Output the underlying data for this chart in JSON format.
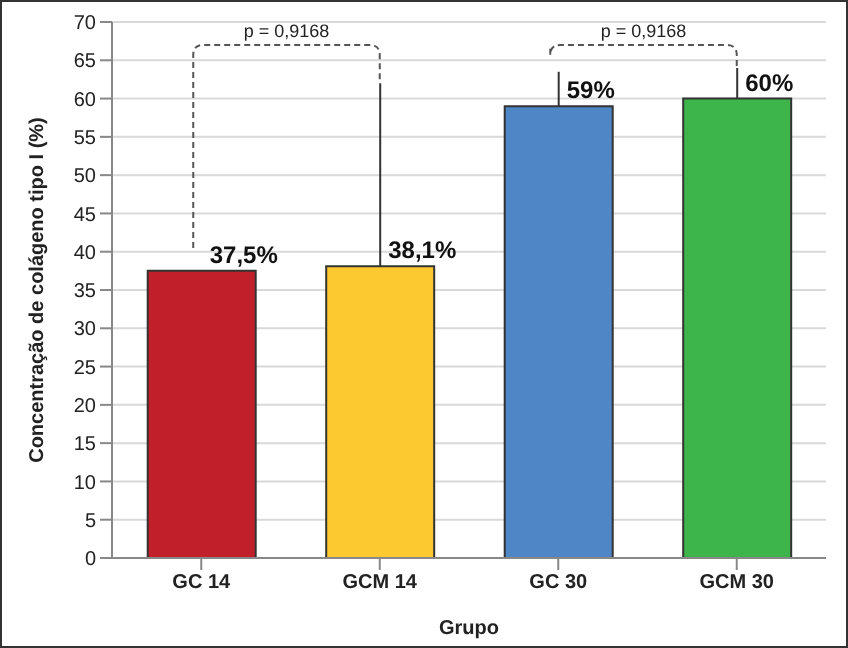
{
  "chart_data": {
    "type": "bar",
    "xlabel": "Grupo",
    "ylabel": "Concentração de colágeno tipo I (%)",
    "categories": [
      "GC 14",
      "GCM 14",
      "GC 30",
      "GCM 30"
    ],
    "values": [
      37.5,
      38.1,
      59,
      60
    ],
    "colors": [
      "#c1202a",
      "#fcc930",
      "#4f86c6",
      "#3db54a"
    ],
    "errors": [
      null,
      [
        38.1,
        62
      ],
      [
        59,
        63.5
      ],
      [
        60,
        64
      ]
    ],
    "value_labels": [
      "37,5%",
      "38,1%",
      "59%",
      "60%"
    ],
    "annotations": [
      "p = 0,9168",
      "p = 0,9168"
    ],
    "ylim": [
      0,
      70
    ],
    "yticks": [
      0,
      5,
      10,
      15,
      20,
      25,
      30,
      35,
      40,
      45,
      50,
      55,
      60,
      65,
      70
    ],
    "grid": "y"
  }
}
